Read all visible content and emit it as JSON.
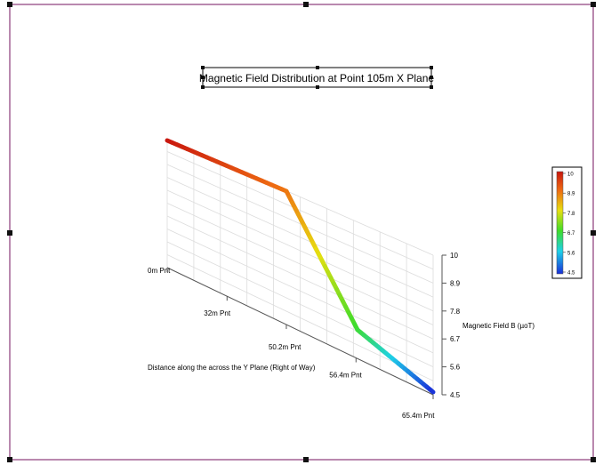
{
  "chart_data": {
    "type": "line",
    "title": "Magnetic Field Distribution at Point 105m X Plane",
    "xlabel": "Distance along the across the Y Plane (Right of Way)",
    "zlabel": "Magnetic Field B (µoT)",
    "x_tick_labels": [
      "0m Pnt",
      "32m Pnt",
      "50.2m Pnt",
      "56.4m Pnt",
      "65.4m Pnt"
    ],
    "z_tick_labels": [
      "4.5",
      "5.6",
      "6.7",
      "7.8",
      "8.9",
      "10"
    ],
    "zlim": [
      4.5,
      10
    ],
    "series": [
      {
        "x": [
          "0m Pnt",
          "32m Pnt",
          "50.2m Pnt",
          "56.4m Pnt",
          "65.4m Pnt"
        ],
        "values": [
          10,
          8.9,
          6.75,
          5.85,
          4.5
        ]
      }
    ],
    "grid": true,
    "colorscale": {
      "tick_labels": [
        "10",
        "8.9",
        "7.8",
        "6.7",
        "5.6",
        "4.5"
      ],
      "colors": [
        "#cc1f0f",
        "#e86a10",
        "#e0d60c",
        "#3bdc2c",
        "#1cd2e6",
        "#1a3cdc"
      ]
    }
  }
}
